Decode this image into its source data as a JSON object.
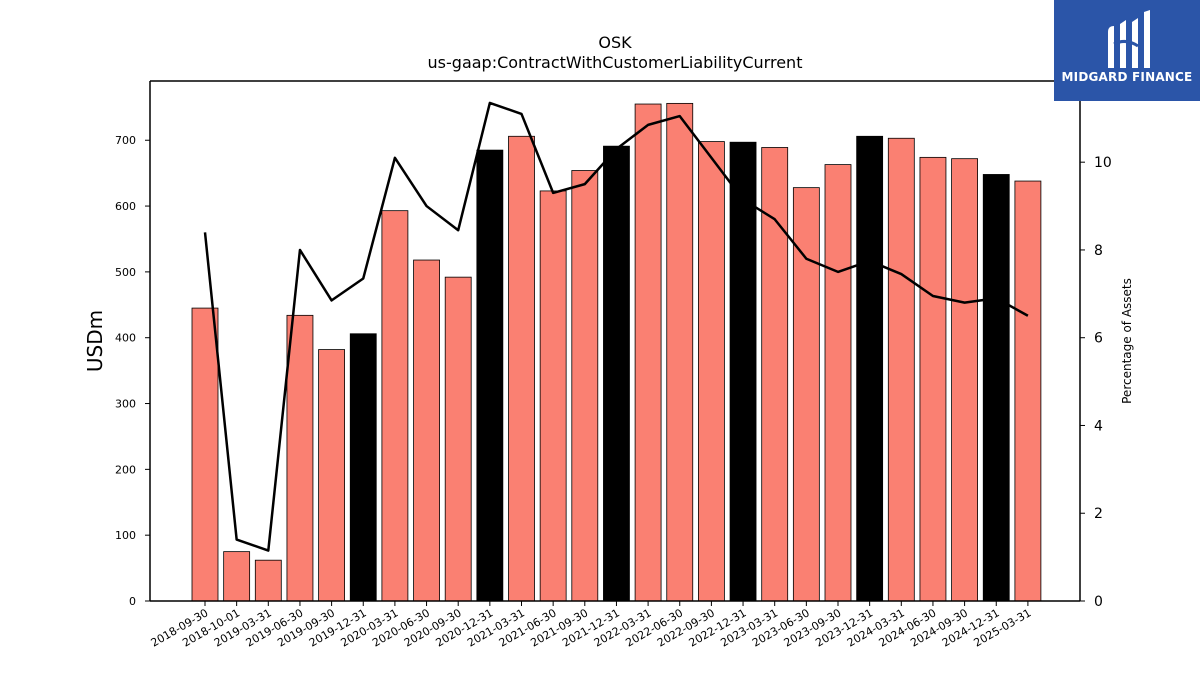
{
  "brand": {
    "name": "MIDGARD FINANCE"
  },
  "colors": {
    "bar": "#fa8072",
    "bar_highlight": "#000000",
    "line": "#000000",
    "logo_bg": "#2b55a8"
  },
  "chart_data": {
    "type": "bar",
    "title": "OSK",
    "subtitle": "us-gaap:ContractWithCustomerLiabilityCurrent",
    "ylabel": "USDm",
    "y2label": "Percentage of Assets",
    "ylim": [
      0,
      790
    ],
    "y2lim": [
      0,
      11.85
    ],
    "yticks": [
      0,
      100,
      200,
      300,
      400,
      500,
      600,
      700
    ],
    "y2ticks": [
      0,
      2,
      4,
      6,
      8,
      10
    ],
    "categories": [
      "2018-09-30",
      "2018-10-01",
      "2019-03-31",
      "2019-06-30",
      "2019-09-30",
      "2019-12-31",
      "2020-03-31",
      "2020-06-30",
      "2020-09-30",
      "2020-12-31",
      "2021-03-31",
      "2021-06-30",
      "2021-09-30",
      "2021-12-31",
      "2022-03-31",
      "2022-06-30",
      "2022-09-30",
      "2022-12-31",
      "2023-03-31",
      "2023-06-30",
      "2023-09-30",
      "2023-12-31",
      "2024-03-31",
      "2024-06-30",
      "2024-09-30",
      "2024-12-31",
      "2025-03-31"
    ],
    "series": [
      {
        "type": "bar",
        "values": [
          445,
          75,
          62,
          434,
          382,
          406,
          593,
          518,
          492,
          685,
          706,
          623,
          654,
          691,
          755,
          756,
          698,
          697,
          689,
          628,
          663,
          706,
          703,
          674,
          672,
          648,
          638
        ],
        "highlight": [
          false,
          false,
          false,
          false,
          false,
          true,
          false,
          false,
          false,
          true,
          false,
          false,
          false,
          true,
          false,
          false,
          false,
          true,
          false,
          false,
          false,
          true,
          false,
          false,
          false,
          true,
          false
        ]
      },
      {
        "type": "line",
        "axis": "right",
        "values": [
          8.4,
          1.4,
          1.15,
          8.0,
          6.85,
          7.35,
          10.1,
          9.0,
          8.45,
          11.35,
          11.1,
          9.3,
          9.5,
          10.3,
          10.85,
          11.05,
          10.1,
          9.15,
          8.7,
          7.8,
          7.5,
          7.75,
          7.45,
          6.95,
          6.8,
          6.9,
          6.5
        ]
      }
    ],
    "grid": false,
    "legend": "none"
  }
}
